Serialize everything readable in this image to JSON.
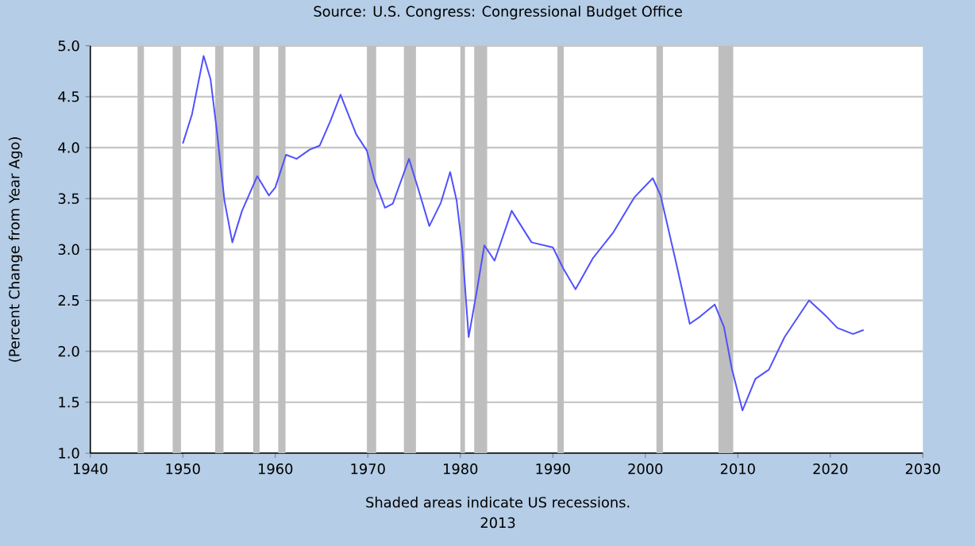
{
  "chart_data": {
    "type": "line",
    "ylabel": "(Percent Change from Year Ago)",
    "annotations": [
      "Source: U.S. Congress: Congressional Budget Office",
      "Shaded areas indicate US recessions.",
      "2013"
    ],
    "x": [
      1950.0,
      1951.0,
      1952.25,
      1953.0,
      1953.7,
      1954.5,
      1955.35,
      1956.4,
      1958.05,
      1959.3,
      1960.0,
      1961.15,
      1962.3,
      1963.7,
      1964.8,
      1965.95,
      1967.05,
      1968.75,
      1969.9,
      1970.7,
      1971.85,
      1972.7,
      1974.45,
      1975.5,
      1976.65,
      1977.9,
      1978.9,
      1979.6,
      1980.2,
      1980.9,
      1981.7,
      1982.6,
      1983.7,
      1985.55,
      1987.7,
      1990.0,
      1991.15,
      1992.45,
      1994.3,
      1996.55,
      1998.8,
      2000.8,
      2001.65,
      2003.35,
      2004.8,
      2005.9,
      2007.5,
      2008.5,
      2009.35,
      2010.5,
      2011.9,
      2013.35,
      2015.05,
      2017.7,
      2019.6,
      2020.75,
      2022.45,
      2023.6
    ],
    "series": [
      {
        "color": "#5050ff",
        "values": [
          4.04,
          4.33,
          4.9,
          4.67,
          4.15,
          3.48,
          3.07,
          3.38,
          3.72,
          3.53,
          3.61,
          3.93,
          3.89,
          3.98,
          4.02,
          4.26,
          4.52,
          4.13,
          3.97,
          3.69,
          3.41,
          3.45,
          3.89,
          3.58,
          3.23,
          3.46,
          3.76,
          3.48,
          3.02,
          2.14,
          2.55,
          3.04,
          2.89,
          3.38,
          3.07,
          3.02,
          2.81,
          2.61,
          2.91,
          3.17,
          3.51,
          3.7,
          3.53,
          2.86,
          2.27,
          2.34,
          2.46,
          2.24,
          1.83,
          1.42,
          1.73,
          1.82,
          2.14,
          2.5,
          2.34,
          2.23,
          2.17,
          2.21
        ]
      }
    ],
    "xlim": [
      1940,
      2030
    ],
    "xticks": [
      1940,
      1950,
      1960,
      1970,
      1980,
      1990,
      2000,
      2010,
      2020,
      2030
    ],
    "ylim": [
      1,
      5
    ],
    "yticks": [
      {
        "value": 1,
        "label": "1.0"
      },
      {
        "value": 1.5,
        "label": "1.5"
      },
      {
        "value": 2,
        "label": "2.0"
      },
      {
        "value": 2.5,
        "label": "2.5"
      },
      {
        "value": 3,
        "label": "3.0"
      },
      {
        "value": 3.5,
        "label": "3.5"
      },
      {
        "value": 4,
        "label": "4.0"
      },
      {
        "value": 4.5,
        "label": "4.5"
      },
      {
        "value": 5,
        "label": "5.0"
      }
    ],
    "bands": [
      {
        "axis": "x",
        "from": 1945.1,
        "to": 1945.8,
        "color": "#bebebe"
      },
      {
        "axis": "x",
        "from": 1948.9,
        "to": 1949.8,
        "color": "#bebebe"
      },
      {
        "axis": "x",
        "from": 1953.5,
        "to": 1954.4,
        "color": "#bebebe"
      },
      {
        "axis": "x",
        "from": 1957.6,
        "to": 1958.3,
        "color": "#bebebe"
      },
      {
        "axis": "x",
        "from": 1960.3,
        "to": 1961.1,
        "color": "#bebebe"
      },
      {
        "axis": "x",
        "from": 1969.9,
        "to": 1970.9,
        "color": "#bebebe"
      },
      {
        "axis": "x",
        "from": 1973.9,
        "to": 1975.2,
        "color": "#bebebe"
      },
      {
        "axis": "x",
        "from": 1980.0,
        "to": 1980.5,
        "color": "#bebebe"
      },
      {
        "axis": "x",
        "from": 1981.5,
        "to": 1982.9,
        "color": "#bebebe"
      },
      {
        "axis": "x",
        "from": 1990.5,
        "to": 1991.2,
        "color": "#bebebe"
      },
      {
        "axis": "x",
        "from": 2001.2,
        "to": 2001.9,
        "color": "#bebebe"
      },
      {
        "axis": "x",
        "from": 2007.9,
        "to": 2009.5,
        "color": "#bebebe"
      }
    ],
    "grid": "y",
    "marker": "none",
    "line_style": "solid"
  }
}
